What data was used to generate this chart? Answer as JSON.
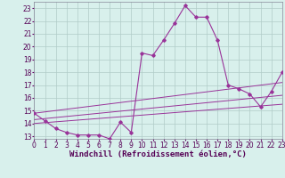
{
  "title": "",
  "xlabel": "Windchill (Refroidissement éolien,°C)",
  "bg_color": "#d8f0ec",
  "grid_color": "#b0ccc8",
  "line_color": "#993399",
  "xlim": [
    0,
    23
  ],
  "ylim": [
    12.8,
    23.5
  ],
  "yticks": [
    13,
    14,
    15,
    16,
    17,
    18,
    19,
    20,
    21,
    22,
    23
  ],
  "xticks": [
    0,
    1,
    2,
    3,
    4,
    5,
    6,
    7,
    8,
    9,
    10,
    11,
    12,
    13,
    14,
    15,
    16,
    17,
    18,
    19,
    20,
    21,
    22,
    23
  ],
  "hours": [
    0,
    1,
    2,
    3,
    4,
    5,
    6,
    7,
    8,
    9,
    10,
    11,
    12,
    13,
    14,
    15,
    16,
    17,
    18,
    19,
    20,
    21,
    22,
    23
  ],
  "temps": [
    14.8,
    14.2,
    13.6,
    13.3,
    13.1,
    13.1,
    13.1,
    12.8,
    14.1,
    13.3,
    19.5,
    19.3,
    20.5,
    21.8,
    23.2,
    22.3,
    22.3,
    20.5,
    17.0,
    16.7,
    16.3,
    15.3,
    16.5,
    18.0
  ],
  "trend1_x": [
    0,
    23
  ],
  "trend1_y": [
    14.8,
    17.2
  ],
  "trend2_x": [
    0,
    23
  ],
  "trend2_y": [
    14.0,
    15.5
  ],
  "trend3_x": [
    0,
    23
  ],
  "trend3_y": [
    14.3,
    16.2
  ],
  "tick_fontsize": 5.5,
  "xlabel_fontsize": 6.5
}
